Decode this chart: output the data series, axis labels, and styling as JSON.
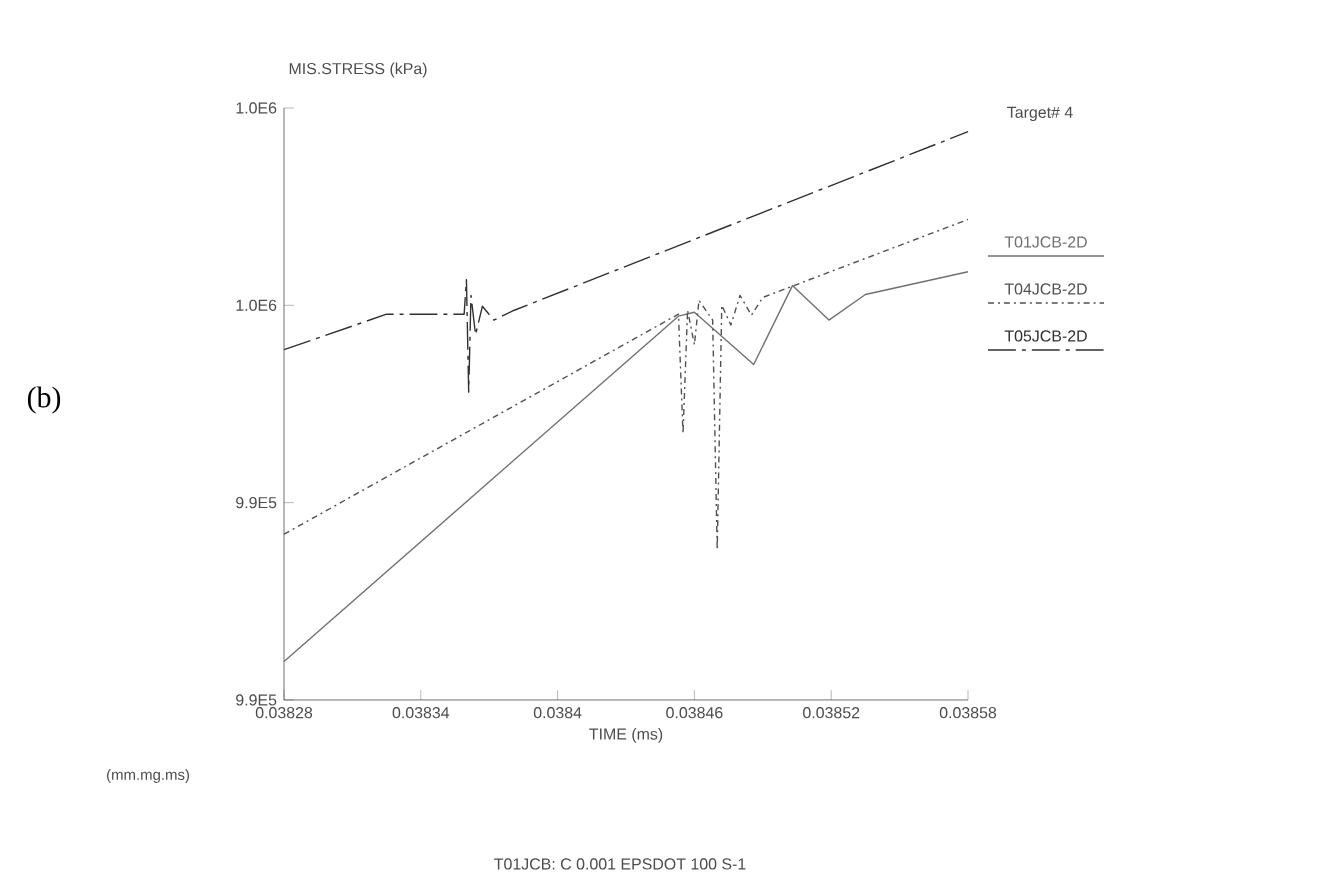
{
  "chart_data": {
    "type": "line",
    "ylabel": "MIS.STRESS (kPa)",
    "xlabel": "TIME (ms)",
    "legend_title": "Target#  4",
    "legend": "right",
    "annotations": [
      "(b)",
      "(mm.mg.ms)",
      "T01JCB: C 0.001   EPSDOT 100 S-1"
    ],
    "xlim": [
      0.03828,
      0.03858
    ],
    "xticks": [
      0.03828,
      0.03834,
      0.0384,
      0.03846,
      0.03852,
      0.03858
    ],
    "ylim": [
      992000,
      998000
    ],
    "yticks": [
      {
        "value": 992000,
        "label": "9.9E5"
      },
      {
        "value": 994000,
        "label": "9.9E5"
      },
      {
        "value": 996000,
        "label": "1.0E6"
      },
      {
        "value": 998000,
        "label": "1.0E6"
      }
    ],
    "series": [
      {
        "name": "T01JCB-2D",
        "color": "#707070",
        "line_style": "solid",
        "x": [
          0.03828,
          0.038453,
          0.03846,
          0.038486,
          0.038503,
          0.038519,
          0.038535,
          0.03858
        ],
        "values": [
          992390,
          995890,
          995930,
          995400,
          996200,
          995850,
          996110,
          996340
        ]
      },
      {
        "name": "T04JCB-2D",
        "color": "#505050",
        "line_style": "dotted",
        "x": [
          0.03828,
          0.038453,
          0.038455,
          0.038457,
          0.03846,
          0.038462,
          0.038468,
          0.03847,
          0.038472,
          0.038476,
          0.03848,
          0.038485,
          0.03849,
          0.03858
        ],
        "values": [
          993680,
          995910,
          994700,
          995950,
          995600,
          996050,
          995850,
          993520,
          996000,
          995800,
          996100,
          995900,
          996080,
          996870
        ]
      },
      {
        "name": "T05JCB-2D",
        "color": "#303030",
        "line_style": "dashed",
        "x": [
          0.03828,
          0.038325,
          0.038359,
          0.03836,
          0.038361,
          0.038362,
          0.038364,
          0.038367,
          0.038372,
          0.038381,
          0.03858
        ],
        "values": [
          995550,
          995910,
          995910,
          996260,
          995120,
          996100,
          995700,
          995990,
          995850,
          995950,
          997760
        ]
      }
    ]
  }
}
